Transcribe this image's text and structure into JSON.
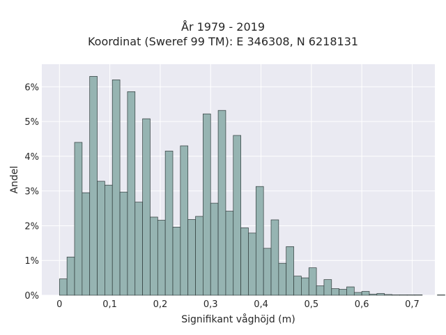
{
  "chart_data": {
    "type": "bar",
    "title": "År 1979 - 2019",
    "subtitle": "Koordinat (Sweref 99 TM): E 346308, N 6218131",
    "xlabel": "Signifikant våghöjd (m)",
    "ylabel": "Andel",
    "xlim": [
      -0.035,
      0.745
    ],
    "ylim": [
      0,
      6.65
    ],
    "x_ticks": [
      0,
      0.1,
      0.2,
      0.3,
      0.4,
      0.5,
      0.6,
      0.7
    ],
    "x_tick_labels": [
      "0",
      "0,1",
      "0,2",
      "0,3",
      "0,4",
      "0,5",
      "0,6",
      "0,7"
    ],
    "y_ticks": [
      0,
      1,
      2,
      3,
      4,
      5,
      6
    ],
    "y_tick_labels": [
      "0%",
      "1%",
      "2%",
      "3%",
      "4%",
      "5%",
      "6%"
    ],
    "bin_width": 0.015,
    "bin_edges_start": 0,
    "grid": true,
    "bar_color": "#96b4b2",
    "bar_edge_color": "#2f3a3a",
    "background_color": "#eaeaf2",
    "values": [
      0.47,
      1.1,
      4.4,
      2.95,
      6.3,
      3.28,
      3.17,
      6.2,
      2.97,
      5.86,
      2.68,
      5.08,
      2.25,
      2.16,
      4.15,
      1.96,
      4.3,
      2.18,
      2.27,
      5.22,
      2.65,
      5.32,
      2.42,
      4.6,
      1.94,
      1.79,
      3.13,
      1.35,
      2.17,
      0.92,
      1.4,
      0.55,
      0.5,
      0.79,
      0.27,
      0.45,
      0.19,
      0.17,
      0.24,
      0.08,
      0.11,
      0.03,
      0.05,
      0.02,
      0.01,
      0.01,
      0.01,
      0.01,
      0.0,
      0.0,
      0.01,
      0.0
    ]
  }
}
